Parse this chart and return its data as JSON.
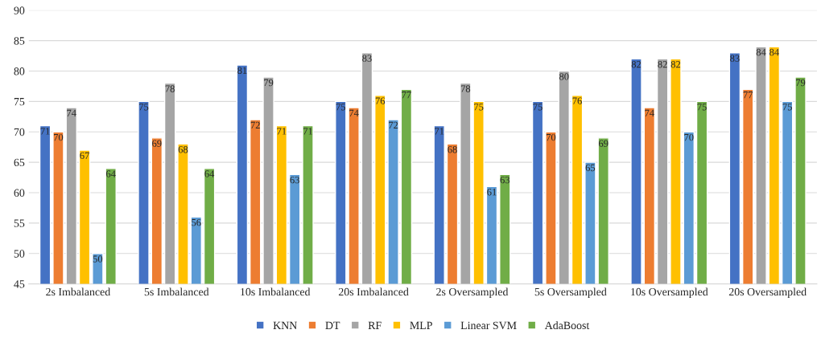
{
  "chart_data": {
    "type": "bar",
    "categories": [
      "2s Imbalanced",
      "5s Imbalanced",
      "10s Imbalanced",
      "20s Imbalanced",
      "2s Oversampled",
      "5s Oversampled",
      "10s Oversampled",
      "20s Oversampled"
    ],
    "series": [
      {
        "name": "KNN",
        "color": "#4472c4",
        "values": [
          71,
          75,
          81,
          75,
          71,
          75,
          82,
          83
        ]
      },
      {
        "name": "DT",
        "color": "#ed7d31",
        "values": [
          70,
          69,
          72,
          74,
          68,
          70,
          74,
          77
        ]
      },
      {
        "name": "RF",
        "color": "#a5a5a5",
        "values": [
          74,
          78,
          79,
          83,
          78,
          80,
          82,
          84
        ]
      },
      {
        "name": "MLP",
        "color": "#ffc000",
        "values": [
          67,
          68,
          71,
          76,
          75,
          76,
          82,
          84
        ]
      },
      {
        "name": "Linear SVM",
        "color": "#5b9bd5",
        "values": [
          50,
          56,
          63,
          72,
          61,
          65,
          70,
          75
        ]
      },
      {
        "name": "AdaBoost",
        "color": "#70ad47",
        "values": [
          64,
          64,
          71,
          77,
          63,
          69,
          75,
          79
        ]
      }
    ],
    "ylim": [
      45,
      90
    ],
    "yticks": [
      45,
      50,
      55,
      60,
      65,
      70,
      75,
      80,
      85,
      90
    ],
    "grid": "y",
    "legend": "bottom",
    "data_labels": true
  }
}
